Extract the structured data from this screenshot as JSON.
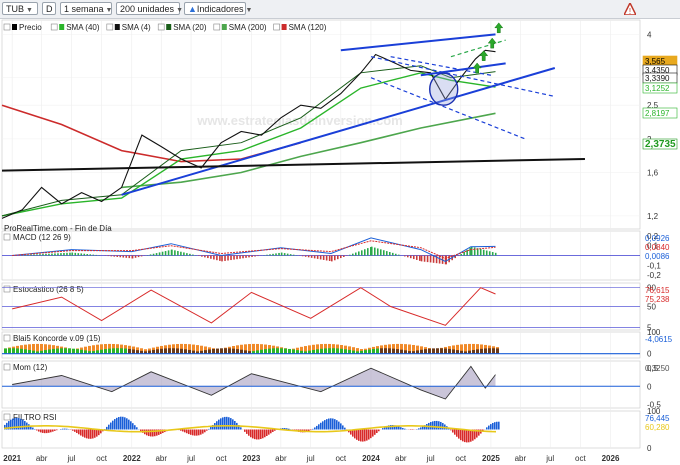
{
  "toolbar": {
    "symbol": "TUB",
    "style": "D",
    "period": "1 semana",
    "units": "200 unidades",
    "indicators": "Indicadores",
    "dropdown_glyph": "▼"
  },
  "chart_data": [
    {
      "type": "line",
      "panel": "price",
      "title": "",
      "watermark": "www.estrategiasdeinversion.com",
      "source_label": "ProRealTime.com - Fin de Día",
      "legend": [
        "Precio",
        "SMA (40)",
        "SMA (4)",
        "SMA (20)",
        "SMA (200)",
        "SMA (120)"
      ],
      "series_colors": {
        "Precio": "#000000",
        "SMA (40)": "#2ab52a",
        "SMA (4)": "#111111",
        "SMA (20)": "#1a5e1a",
        "SMA (200)": "#4da64d",
        "SMA (120)": "#cc2b2b"
      },
      "yscale": "log",
      "yticks": [
        1.2,
        1.6,
        2,
        2.5,
        3,
        4
      ],
      "ylim": [
        1.1,
        4.4
      ],
      "xlim": [
        "2020-12-01",
        "2026-04-01"
      ],
      "x_ticks": [
        {
          "x": "2021-01-01",
          "label": "2021",
          "bold": true
        },
        {
          "x": "2021-04-01",
          "label": "abr"
        },
        {
          "x": "2021-07-01",
          "label": "jul"
        },
        {
          "x": "2021-10-01",
          "label": "oct"
        },
        {
          "x": "2022-01-01",
          "label": "2022",
          "bold": true
        },
        {
          "x": "2022-04-01",
          "label": "abr"
        },
        {
          "x": "2022-07-01",
          "label": "jul"
        },
        {
          "x": "2022-10-01",
          "label": "oct"
        },
        {
          "x": "2023-01-01",
          "label": "2023",
          "bold": true
        },
        {
          "x": "2023-04-01",
          "label": "abr"
        },
        {
          "x": "2023-07-01",
          "label": "jul"
        },
        {
          "x": "2023-10-01",
          "label": "oct"
        },
        {
          "x": "2024-01-01",
          "label": "2024",
          "bold": true
        },
        {
          "x": "2024-04-01",
          "label": "abr"
        },
        {
          "x": "2024-07-01",
          "label": "jul"
        },
        {
          "x": "2024-10-01",
          "label": "oct"
        },
        {
          "x": "2025-01-01",
          "label": "2025",
          "bold": true
        },
        {
          "x": "2025-04-01",
          "label": "abr"
        },
        {
          "x": "2025-07-01",
          "label": "jul"
        },
        {
          "x": "2025-10-01",
          "label": "oct"
        },
        {
          "x": "2026-01-01",
          "label": "2026",
          "bold": true
        }
      ],
      "price": {
        "x": [
          "2020-12-01",
          "2021-02-01",
          "2021-04-01",
          "2021-06-01",
          "2021-08-01",
          "2021-10-01",
          "2021-12-01",
          "2022-02-01",
          "2022-04-01",
          "2022-06-01",
          "2022-08-01",
          "2022-10-01",
          "2022-12-01",
          "2023-02-01",
          "2023-04-01",
          "2023-06-01",
          "2023-08-01",
          "2023-10-01",
          "2023-12-01",
          "2024-01-15",
          "2024-03-01",
          "2024-05-01",
          "2024-07-01",
          "2024-08-15",
          "2024-10-01",
          "2024-11-15",
          "2024-12-15",
          "2025-01-15"
        ],
        "y": [
          1.18,
          1.25,
          1.45,
          1.3,
          1.4,
          1.32,
          1.45,
          2.05,
          1.9,
          1.75,
          1.65,
          1.95,
          2.1,
          2.05,
          2.3,
          2.5,
          2.45,
          2.7,
          3.1,
          3.5,
          3.35,
          3.15,
          3.1,
          2.6,
          3.0,
          3.4,
          3.6,
          3.565
        ]
      },
      "sma40": {
        "x": [
          "2020-12-01",
          "2021-06-01",
          "2021-12-01",
          "2022-06-01",
          "2022-12-01",
          "2023-06-01",
          "2023-12-01",
          "2024-06-01",
          "2024-09-01",
          "2025-01-15"
        ],
        "y": [
          1.2,
          1.3,
          1.35,
          1.75,
          1.85,
          2.15,
          2.8,
          3.1,
          2.95,
          2.82
        ]
      },
      "sma20": {
        "x": [
          "2020-12-01",
          "2021-06-01",
          "2021-12-01",
          "2022-06-01",
          "2022-12-01",
          "2023-06-01",
          "2023-12-01",
          "2024-06-01",
          "2024-09-01",
          "2025-01-15"
        ],
        "y": [
          1.2,
          1.33,
          1.38,
          1.85,
          1.95,
          2.3,
          3.1,
          3.25,
          3.0,
          3.125
        ]
      },
      "sma120": {
        "x": [
          "2020-12-01",
          "2021-06-01",
          "2021-12-01",
          "2022-06-01",
          "2022-12-01",
          "2023-06-01"
        ],
        "y": [
          2.5,
          2.2,
          1.85,
          1.72,
          1.75,
          1.95
        ]
      },
      "sma200": {
        "x": [
          "2021-12-01",
          "2022-06-01",
          "2022-12-01",
          "2023-06-01",
          "2023-12-01",
          "2024-06-01",
          "2025-01-15"
        ],
        "y": [
          1.45,
          1.5,
          1.6,
          1.78,
          1.95,
          2.15,
          2.37
        ]
      },
      "trendlines": [
        {
          "color": "#1a3fd8",
          "style": "solid",
          "x": [
            "2021-12-01",
            "2025-07-15"
          ],
          "y": [
            1.38,
            3.2
          ]
        },
        {
          "color": "#1a3fd8",
          "style": "solid",
          "x": [
            "2023-10-01",
            "2025-01-15"
          ],
          "y": [
            3.6,
            4.0
          ]
        },
        {
          "color": "#1a3fd8",
          "style": "solid",
          "x": [
            "2024-06-01",
            "2025-02-15"
          ],
          "y": [
            3.05,
            3.3
          ]
        },
        {
          "color": "#1a3fd8",
          "style": "dashed",
          "x": [
            "2024-01-01",
            "2025-07-15"
          ],
          "y": [
            3.45,
            2.65
          ]
        },
        {
          "color": "#1a3fd8",
          "style": "dashed",
          "x": [
            "2024-01-01",
            "2025-04-15"
          ],
          "y": [
            3.0,
            2.0
          ]
        },
        {
          "color": "#1a3fd8",
          "style": "dashed",
          "x": [
            "2024-03-01",
            "2025-01-01"
          ],
          "y": [
            3.45,
            3.05
          ]
        },
        {
          "color": "#2aa84a",
          "style": "dashed",
          "x": [
            "2024-09-01",
            "2025-02-15"
          ],
          "y": [
            3.45,
            3.85
          ]
        },
        {
          "color": "#111111",
          "style": "solid",
          "x": [
            "2020-12-01",
            "2025-10-15"
          ],
          "y": [
            1.62,
            1.75
          ]
        }
      ],
      "circle_highlight": {
        "x": "2024-08-10",
        "y": 2.78
      },
      "up_arrows": [
        {
          "x": "2024-11-20",
          "y": 3.18
        },
        {
          "x": "2024-12-10",
          "y": 3.45
        },
        {
          "x": "2025-01-05",
          "y": 3.75
        },
        {
          "x": "2025-01-25",
          "y": 4.15
        },
        {
          "x": "2025-02-20",
          "y": 4.6
        }
      ],
      "price_tags": [
        {
          "value": "3,565",
          "color": "#e8a91f",
          "bg": "#e8a91f",
          "fg": "#000000"
        },
        {
          "value": "3,4350",
          "color": "#111111",
          "bg": "#ffffff",
          "fg": "#111111"
        },
        {
          "value": "3,3390",
          "color": "#111111",
          "bg": "#ffffff",
          "fg": "#111111"
        },
        {
          "value": "3,1252",
          "color": "#2ab52a",
          "bg": "#ffffff",
          "fg": "#2ab52a"
        },
        {
          "value": "2,8197",
          "color": "#2ab52a",
          "bg": "#ffffff",
          "fg": "#2ab52a"
        },
        {
          "value": "2,3735",
          "color": "#1f9a1f",
          "bg": "#ffffff",
          "fg": "#1f9a1f"
        }
      ]
    },
    {
      "type": "line",
      "panel": "macd",
      "title": "MACD (12 26 9)",
      "yticks": [
        0.2,
        0.1,
        -0.1,
        -0.2
      ],
      "value_tags": [
        {
          "value": "0,0926",
          "color": "#1a5fd8"
        },
        {
          "value": "0,0840",
          "color": "#d82a2a"
        },
        {
          "value": "0,0086",
          "color": "#1a5fd8"
        }
      ],
      "macd": {
        "x": [
          "2021-01-01",
          "2021-07-01",
          "2022-01-01",
          "2022-05-01",
          "2022-10-01",
          "2023-04-01",
          "2023-09-01",
          "2024-01-01",
          "2024-06-01",
          "2024-08-15",
          "2024-11-01",
          "2025-01-15"
        ],
        "y": [
          0.0,
          0.06,
          0.04,
          0.12,
          0.0,
          0.08,
          0.02,
          0.18,
          0.06,
          -0.06,
          0.09,
          0.0926
        ]
      },
      "signal": {
        "x": [
          "2021-01-01",
          "2021-07-01",
          "2022-01-01",
          "2022-05-01",
          "2022-10-01",
          "2023-04-01",
          "2023-09-01",
          "2024-01-01",
          "2024-06-01",
          "2024-08-15",
          "2024-11-01",
          "2025-01-15"
        ],
        "y": [
          0.0,
          0.05,
          0.05,
          0.1,
          0.02,
          0.07,
          0.04,
          0.15,
          0.08,
          -0.03,
          0.06,
          0.084
        ]
      }
    },
    {
      "type": "line",
      "panel": "stochastic",
      "title": "Estocástico (26 8 5)",
      "yticks": [
        90,
        50,
        5
      ],
      "value_tags": [
        {
          "value": "76,615",
          "color": "#d82a2a"
        },
        {
          "value": "75,238",
          "color": "#d82a2a"
        }
      ],
      "k": {
        "x": [
          "2021-01-01",
          "2021-06-01",
          "2021-10-01",
          "2022-03-01",
          "2022-09-01",
          "2023-01-01",
          "2023-07-01",
          "2023-12-01",
          "2024-03-01",
          "2024-08-15",
          "2024-12-01",
          "2025-01-15"
        ],
        "y": [
          45,
          70,
          20,
          85,
          15,
          80,
          25,
          90,
          50,
          10,
          90,
          76.6
        ]
      }
    },
    {
      "type": "area",
      "panel": "koncorde",
      "title": "Blai5 Koncorde v.09 (15)",
      "yticks": [
        100,
        0
      ],
      "value_tags": [
        {
          "value": "-4,0615",
          "color": "#1a5fd8"
        }
      ]
    },
    {
      "type": "line",
      "panel": "momentum",
      "title": "Mom (12)",
      "yticks": [
        0.5,
        0,
        -0.5
      ],
      "value_tags": [
        {
          "value": "0,3250",
          "color": "#555555"
        }
      ],
      "mom": {
        "x": [
          "2021-01-01",
          "2021-06-01",
          "2021-11-01",
          "2022-03-01",
          "2022-09-01",
          "2023-01-01",
          "2023-08-01",
          "2024-01-01",
          "2024-06-01",
          "2024-08-15",
          "2024-11-01",
          "2024-12-15",
          "2025-01-15"
        ],
        "y": [
          0.05,
          0.3,
          -0.15,
          0.4,
          -0.25,
          0.35,
          -0.15,
          0.5,
          -0.1,
          -0.35,
          0.55,
          -0.05,
          0.325
        ]
      }
    },
    {
      "type": "line",
      "panel": "rsi",
      "title": "FILTRO RSI",
      "yticks": [
        100,
        0
      ],
      "value_tags": [
        {
          "value": "76,445",
          "color": "#1a5fd8"
        },
        {
          "value": "60,280",
          "color": "#e8c81a"
        }
      ]
    }
  ]
}
